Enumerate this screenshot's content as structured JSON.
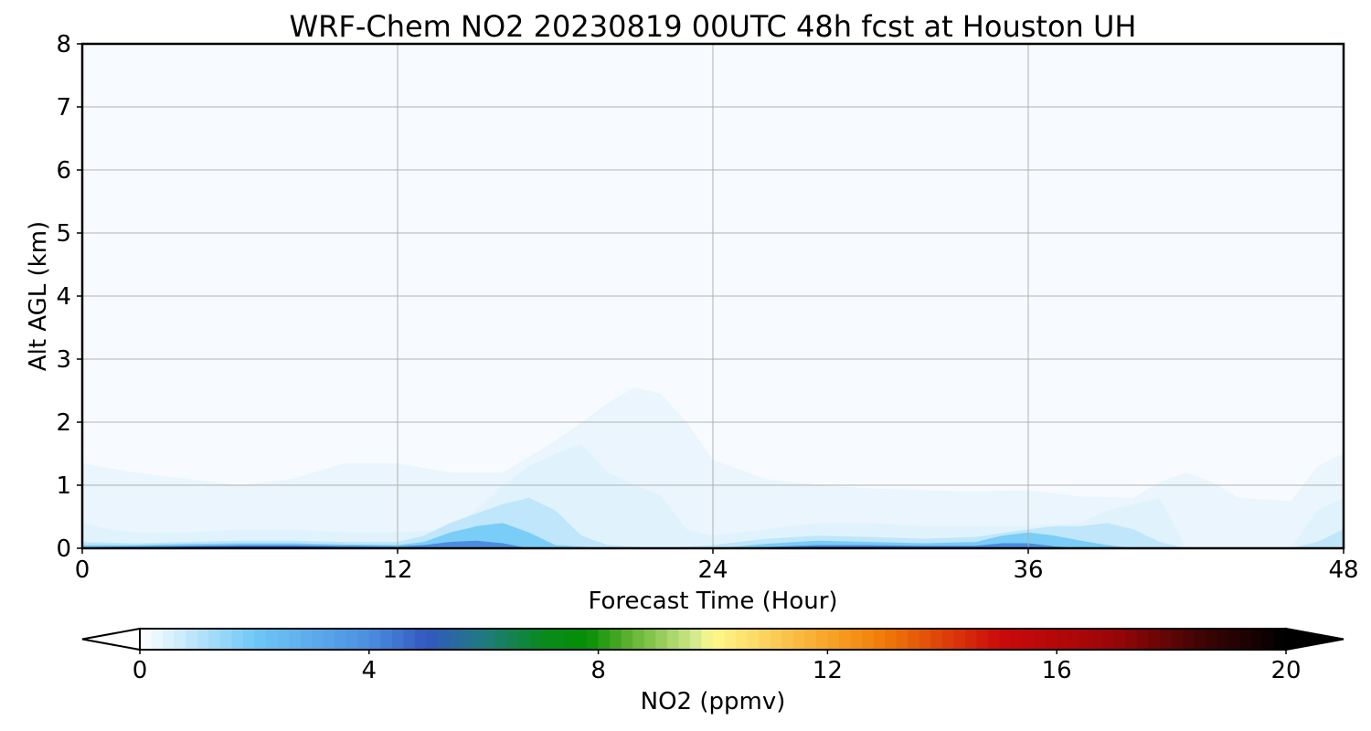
{
  "chart_data": {
    "type": "heatmap",
    "title": "WRF-Chem NO2  20230819 00UTC 48h fcst at Houston UH",
    "xlabel": "Forecast Time (Hour)",
    "ylabel": "Alt AGL (km)",
    "xlim": [
      0,
      48
    ],
    "ylim": [
      0,
      8
    ],
    "x_ticks": [
      "0",
      "12",
      "24",
      "36",
      "48"
    ],
    "y_ticks": [
      "0",
      "1",
      "2",
      "3",
      "4",
      "5",
      "6",
      "7",
      "8"
    ],
    "grid": true,
    "colorbar": {
      "label": "NO2  (ppmv)",
      "range": [
        0,
        20
      ],
      "ticks": [
        "0",
        "4",
        "8",
        "12",
        "16",
        "20"
      ],
      "extend": "both",
      "color_stops": [
        {
          "value": 0,
          "color": "#ffffff"
        },
        {
          "value": 2,
          "color": "#6fc8f7"
        },
        {
          "value": 4,
          "color": "#4a8fe0"
        },
        {
          "value": 5,
          "color": "#3358c0"
        },
        {
          "value": 6,
          "color": "#1f7a80"
        },
        {
          "value": 7,
          "color": "#0a8a20"
        },
        {
          "value": 7.8,
          "color": "#048e04"
        },
        {
          "value": 8.5,
          "color": "#58b02c"
        },
        {
          "value": 9.7,
          "color": "#d5ea8c"
        },
        {
          "value": 10,
          "color": "#fff98c"
        },
        {
          "value": 12,
          "color": "#f8a528"
        },
        {
          "value": 13,
          "color": "#f07a08"
        },
        {
          "value": 15,
          "color": "#cc0a0a"
        },
        {
          "value": 17,
          "color": "#9a0608"
        },
        {
          "value": 18.5,
          "color": "#400404"
        },
        {
          "value": 20,
          "color": "#000000"
        }
      ]
    },
    "fields": [
      {
        "level": 0.05,
        "color": "#f7fbff",
        "x": [
          0,
          48
        ],
        "top": [
          8,
          8
        ]
      },
      {
        "level": 0.1,
        "color": "#eaf5fd",
        "x": [
          0,
          2,
          4,
          6,
          8,
          10,
          12,
          14,
          16,
          18,
          20,
          21,
          22,
          23,
          24,
          26,
          28,
          30,
          32,
          34,
          36,
          38,
          40,
          41,
          42,
          43,
          44,
          46,
          47,
          48
        ],
        "top": [
          1.35,
          1.2,
          1.1,
          1.0,
          1.1,
          1.35,
          1.35,
          1.2,
          1.2,
          1.7,
          2.3,
          2.55,
          2.45,
          2.0,
          1.4,
          1.1,
          1.0,
          0.95,
          0.92,
          0.9,
          0.92,
          0.82,
          0.8,
          1.05,
          1.2,
          1.05,
          0.8,
          0.75,
          1.3,
          1.5
        ]
      },
      {
        "level": 0.5,
        "color": "#e0f3fc",
        "x": [
          0,
          1,
          2,
          4,
          6,
          8,
          10,
          12,
          14,
          15,
          16,
          17,
          18,
          19,
          20,
          21,
          22,
          23,
          24,
          26,
          28,
          30,
          32,
          34,
          36,
          38,
          39,
          40,
          41,
          42,
          43,
          44,
          46,
          47,
          48
        ],
        "top": [
          0.4,
          0.3,
          0.25,
          0.25,
          0.3,
          0.3,
          0.25,
          0.25,
          0.3,
          0.6,
          1.0,
          1.3,
          1.5,
          1.65,
          1.2,
          1.0,
          0.85,
          0.3,
          0.2,
          0.3,
          0.4,
          0.4,
          0.35,
          0.35,
          0.35,
          0.4,
          0.6,
          0.7,
          0.8,
          0,
          0,
          0,
          0,
          0.6,
          0.8
        ]
      },
      {
        "level": 1.0,
        "color": "#bfe6fa",
        "x": [
          0,
          2,
          4,
          6,
          8,
          10,
          12,
          13,
          14,
          15,
          16,
          17,
          18,
          19,
          20,
          22,
          24,
          26,
          28,
          30,
          32,
          34,
          36,
          37,
          38,
          39,
          40,
          41,
          42,
          44,
          46,
          47,
          48
        ],
        "top": [
          0.1,
          0.08,
          0.1,
          0.12,
          0.12,
          0.1,
          0.1,
          0.2,
          0.4,
          0.55,
          0.7,
          0.8,
          0.6,
          0.2,
          0.05,
          0,
          0.05,
          0.15,
          0.2,
          0.18,
          0.15,
          0.18,
          0.3,
          0.35,
          0.35,
          0.4,
          0.3,
          0.1,
          0,
          0,
          0,
          0.1,
          0.3
        ]
      },
      {
        "level": 2.0,
        "color": "#79cdf6",
        "x": [
          0,
          2,
          4,
          6,
          8,
          10,
          12,
          13,
          14,
          15,
          16,
          17,
          18,
          20,
          24,
          25,
          26,
          28,
          30,
          32,
          34,
          35,
          36,
          37,
          38,
          39,
          40,
          42,
          48
        ],
        "top": [
          0.05,
          0.05,
          0.07,
          0.08,
          0.08,
          0.06,
          0.05,
          0.1,
          0.25,
          0.35,
          0.4,
          0.25,
          0.05,
          0,
          0,
          0.03,
          0.07,
          0.12,
          0.1,
          0.08,
          0.1,
          0.2,
          0.25,
          0.2,
          0.12,
          0.05,
          0,
          0,
          0
        ]
      },
      {
        "level": 3.5,
        "color": "#4b8ee0",
        "x": [
          0,
          2,
          4,
          6,
          8,
          10,
          12,
          13,
          14,
          15,
          16,
          17,
          24,
          26,
          28,
          30,
          32,
          34,
          35,
          36,
          37,
          38,
          48
        ],
        "top": [
          0.02,
          0.03,
          0.04,
          0.05,
          0.05,
          0.04,
          0.03,
          0.05,
          0.1,
          0.12,
          0.08,
          0,
          0,
          0.02,
          0.05,
          0.05,
          0.04,
          0.04,
          0.08,
          0.08,
          0.03,
          0,
          0
        ]
      },
      {
        "level": 5.0,
        "color": "#2f50b8",
        "x": [
          0,
          2,
          4,
          6,
          8,
          10,
          12,
          13,
          14,
          24,
          26,
          28,
          30,
          32,
          34,
          36,
          37,
          48
        ],
        "top": [
          0,
          0.015,
          0.025,
          0.03,
          0.03,
          0.02,
          0.01,
          0.02,
          0,
          0,
          0.01,
          0.025,
          0.025,
          0.02,
          0.02,
          0.02,
          0,
          0
        ]
      },
      {
        "level": 6.5,
        "color": "#1f7a70",
        "x": [
          0,
          3,
          5,
          7,
          8,
          9,
          11,
          12,
          48
        ],
        "top": [
          0,
          0,
          0.01,
          0.015,
          0.015,
          0.01,
          0,
          0,
          0
        ]
      }
    ]
  }
}
